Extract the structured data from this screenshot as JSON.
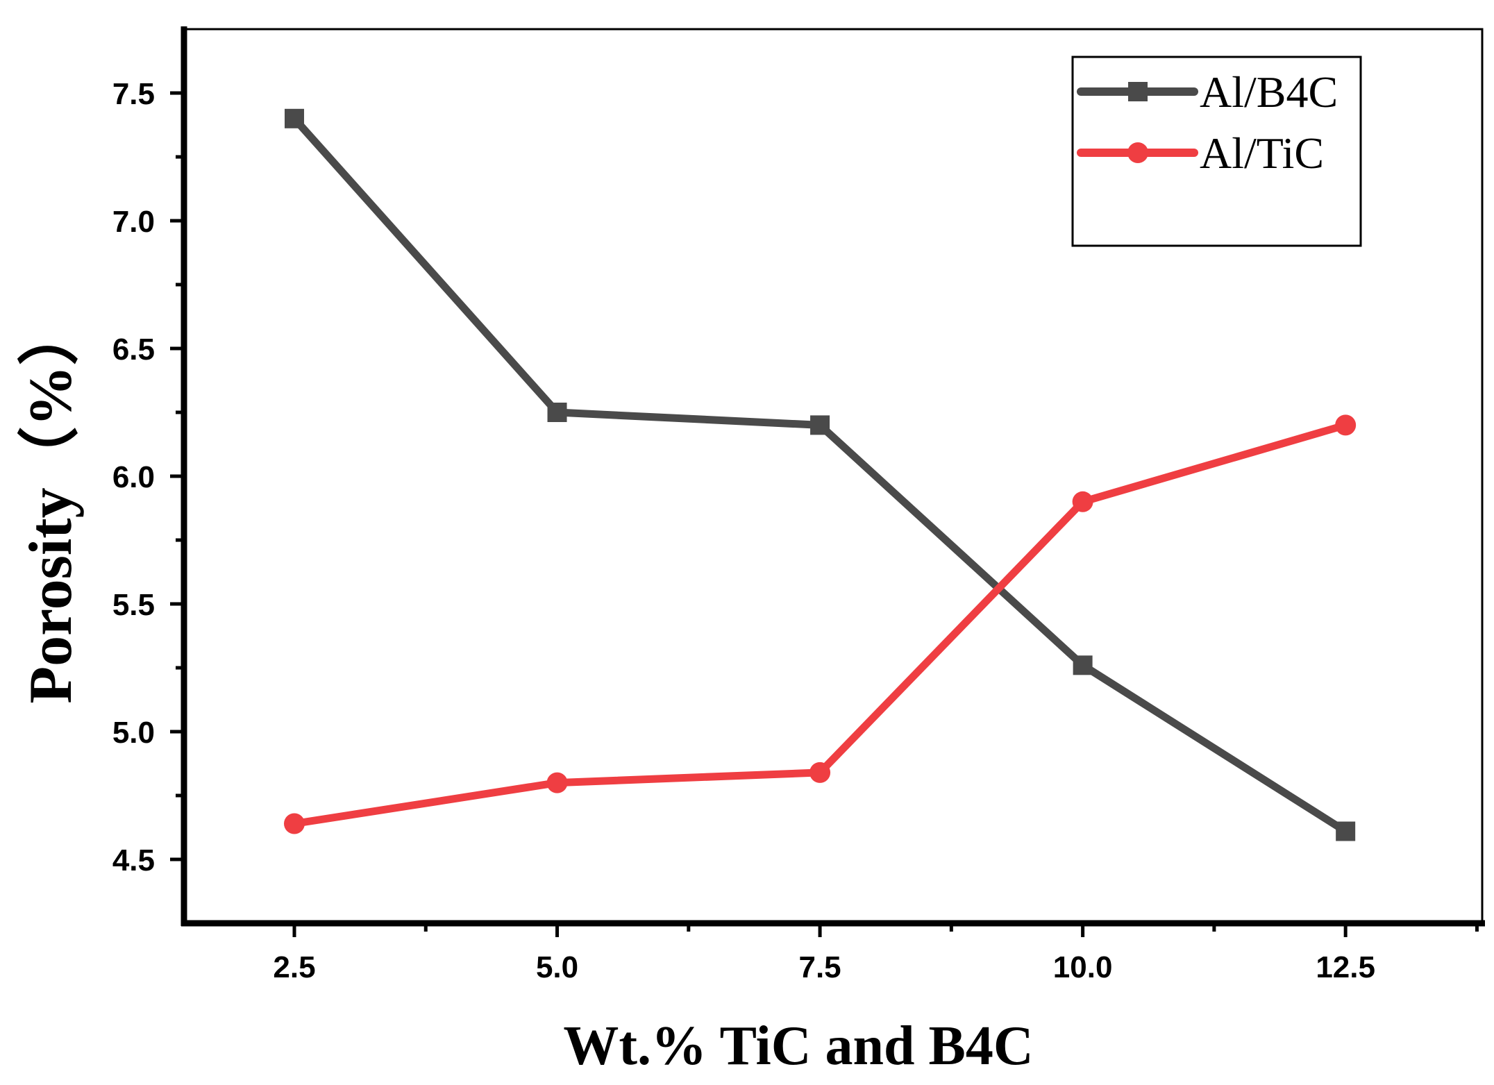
{
  "chart_data": {
    "type": "line",
    "title": "",
    "xlabel": "Wt.% TiC and B4C",
    "ylabel": "Porosity（%）",
    "x": [
      2.5,
      5.0,
      7.5,
      10.0,
      12.5
    ],
    "xlim": [
      1.45,
      13.8
    ],
    "ylim": [
      4.25,
      7.75
    ],
    "x_ticks": [
      2.5,
      5.0,
      7.5,
      10.0,
      12.5
    ],
    "x_tick_labels": [
      "2.5",
      "5.0",
      "7.5",
      "10.0",
      "12.5"
    ],
    "y_ticks": [
      4.5,
      5.0,
      5.5,
      6.0,
      6.5,
      7.0,
      7.5
    ],
    "y_tick_labels": [
      "4.5",
      "5.0",
      "5.5",
      "6.0",
      "6.5",
      "7.0",
      "7.5"
    ],
    "grid": false,
    "legend_position": "top-right",
    "series": [
      {
        "name": "Al/B4C",
        "values": [
          7.4,
          6.25,
          6.2,
          5.26,
          4.61
        ],
        "color": "#4a4a4a",
        "marker": "square"
      },
      {
        "name": "Al/TiC",
        "values": [
          4.64,
          4.8,
          4.84,
          5.9,
          6.2
        ],
        "color": "#ef3e42",
        "marker": "circle"
      }
    ]
  }
}
